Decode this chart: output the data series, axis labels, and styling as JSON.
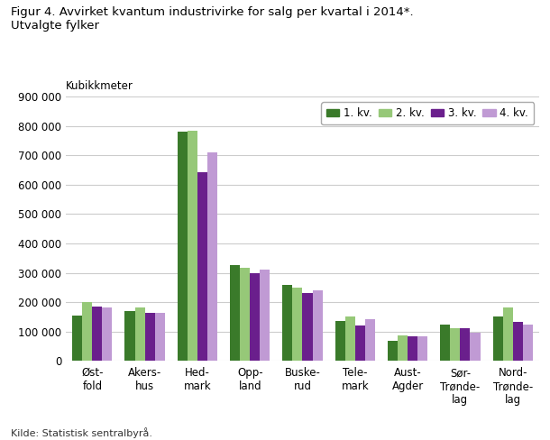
{
  "title_line1": "Figur 4. Avvirket kvantum industrivirke for salg per kvartal i 2014*.",
  "title_line2": "Utvalgte fylker",
  "ylabel": "Kubikkmeter",
  "source": "Kilde: Statistisk sentralbyrå.",
  "categories": [
    "Øst-\nfold",
    "Akers-\nhus",
    "Hed-\nmark",
    "Opp-\nland",
    "Buske-\nrud",
    "Tele-\nmark",
    "Aust-\nAgder",
    "Sør-\nTrønde-\nlag",
    "Nord-\nTrønde-\nlag"
  ],
  "series": {
    "1. kv.": [
      155000,
      170000,
      780000,
      325000,
      260000,
      135000,
      68000,
      122000,
      152000
    ],
    "2. kv.": [
      200000,
      182000,
      785000,
      318000,
      250000,
      150000,
      88000,
      110000,
      183000
    ],
    "3. kv.": [
      185000,
      162000,
      642000,
      298000,
      230000,
      120000,
      82000,
      110000,
      133000
    ],
    "4. kv.": [
      182000,
      162000,
      712000,
      312000,
      241000,
      143000,
      85000,
      95000,
      122000
    ]
  },
  "colors": {
    "1. kv.": "#3a7a2a",
    "2. kv.": "#96c878",
    "3. kv.": "#6a1f8c",
    "4. kv.": "#c09ad4"
  },
  "legend_labels": [
    "1. kv.",
    "2. kv.",
    "3. kv.",
    "4. kv."
  ],
  "ylim": [
    0,
    900000
  ],
  "yticks": [
    0,
    100000,
    200000,
    300000,
    400000,
    500000,
    600000,
    700000,
    800000,
    900000
  ],
  "background_color": "#ffffff",
  "grid_color": "#cccccc",
  "bar_width": 0.19,
  "title_fontsize": 9.5,
  "tick_fontsize": 8.5,
  "source_fontsize": 8.0
}
